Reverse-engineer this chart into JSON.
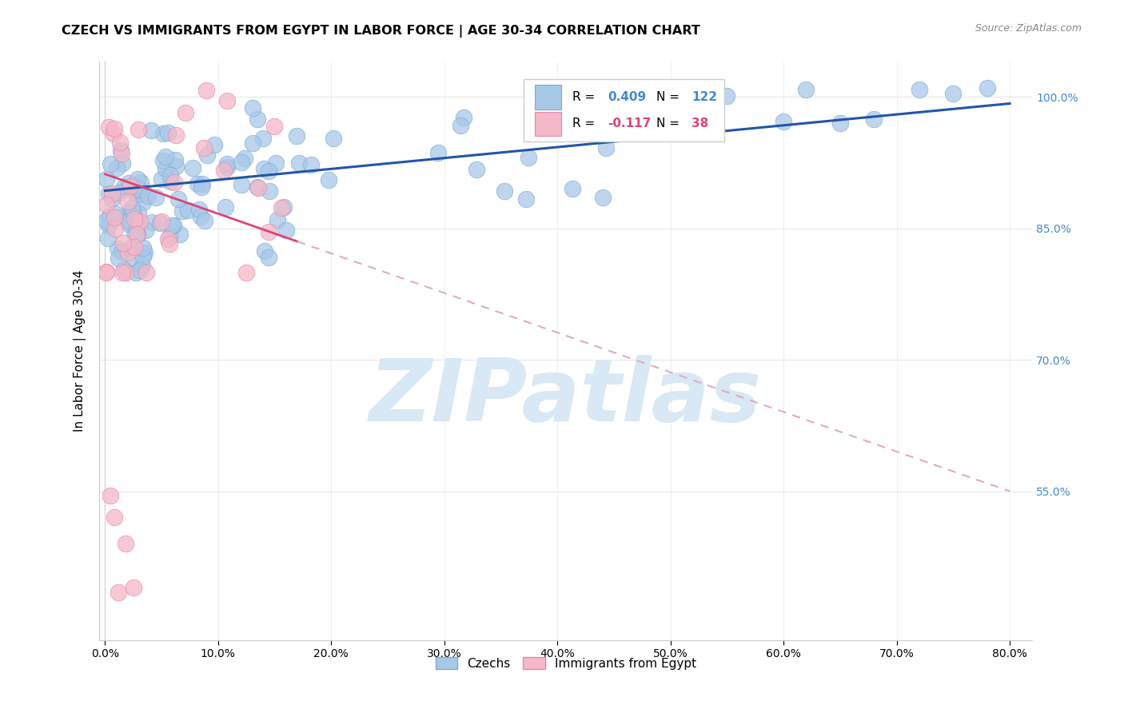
{
  "title": "CZECH VS IMMIGRANTS FROM EGYPT IN LABOR FORCE | AGE 30-34 CORRELATION CHART",
  "source": "Source: ZipAtlas.com",
  "ylabel": "In Labor Force | Age 30-34",
  "x_tick_labels": [
    "0.0%",
    "10.0%",
    "20.0%",
    "30.0%",
    "40.0%",
    "50.0%",
    "60.0%",
    "70.0%",
    "80.0%"
  ],
  "x_tick_vals": [
    0.0,
    0.1,
    0.2,
    0.3,
    0.4,
    0.5,
    0.6,
    0.7,
    0.8
  ],
  "y_tick_labels": [
    "100.0%",
    "85.0%",
    "70.0%",
    "55.0%"
  ],
  "y_tick_vals": [
    1.0,
    0.85,
    0.7,
    0.55
  ],
  "xlim": [
    -0.005,
    0.82
  ],
  "ylim": [
    0.38,
    1.04
  ],
  "legend_labels": [
    "Czechs",
    "Immigrants from Egypt"
  ],
  "blue_color": "#a8c8e8",
  "blue_edge_color": "#7aadd4",
  "pink_color": "#f4b8c8",
  "pink_edge_color": "#e888a8",
  "trend_blue_color": "#2255aa",
  "trend_pink_color": "#dd4477",
  "trend_pink_dash_color": "#ddaacc",
  "grid_color": "#e8e8e8",
  "background_color": "#ffffff",
  "watermark_text": "ZIPatlas",
  "watermark_color": "#d8e8f4",
  "R_blue": 0.409,
  "N_blue": 122,
  "R_pink": -0.117,
  "N_pink": 38,
  "right_tick_color": "#4488cc"
}
